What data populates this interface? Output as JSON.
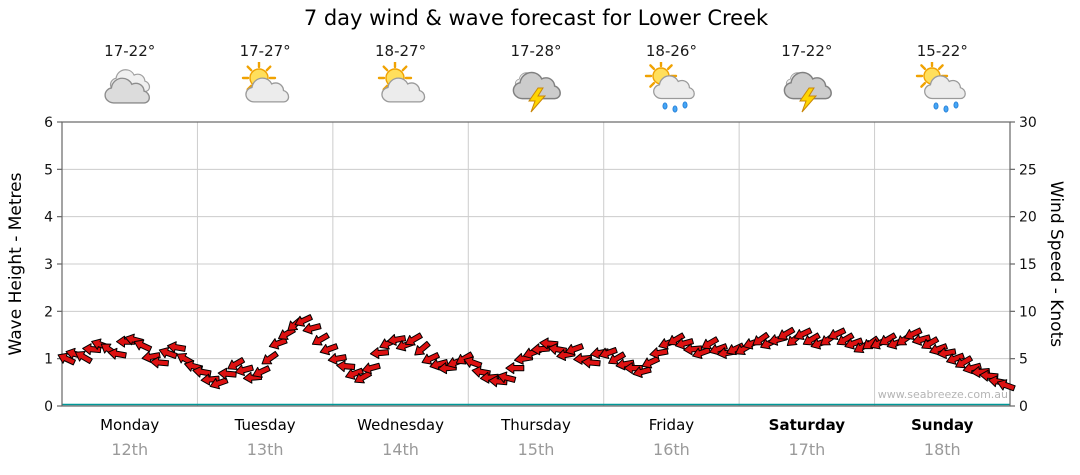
{
  "title": "7 day wind & wave forecast for Lower Creek",
  "watermark": "www.seabreeze.com.au",
  "axes": {
    "left_label": "Wave Height - Metres",
    "right_label": "Wind Speed - Knots",
    "left_ticks": [
      0,
      1,
      2,
      3,
      4,
      5,
      6
    ],
    "right_ticks": [
      0,
      5,
      10,
      15,
      20,
      25,
      30
    ]
  },
  "days": [
    {
      "name": "Monday",
      "date": "12th",
      "temp": "17-22°",
      "icon": "cloudy",
      "bold": false
    },
    {
      "name": "Tuesday",
      "date": "13th",
      "temp": "17-27°",
      "icon": "partly-cloudy",
      "bold": false
    },
    {
      "name": "Wednesday",
      "date": "14th",
      "temp": "18-27°",
      "icon": "partly-cloudy",
      "bold": false
    },
    {
      "name": "Thursday",
      "date": "15th",
      "temp": "17-28°",
      "icon": "storm",
      "bold": false
    },
    {
      "name": "Friday",
      "date": "16th",
      "temp": "18-26°",
      "icon": "sun-showers",
      "bold": false
    },
    {
      "name": "Saturday",
      "date": "17th",
      "temp": "17-22°",
      "icon": "storm",
      "bold": true
    },
    {
      "name": "Sunday",
      "date": "18th",
      "temp": "15-22°",
      "icon": "sun-showers",
      "bold": true
    }
  ],
  "chart_data": {
    "type": "scatter",
    "subtype": "wind-direction-arrows",
    "title": "7 day wind & wave forecast for Lower Creek",
    "ylabel_left": "Wave Height - Metres",
    "ylim_left": [
      0,
      6
    ],
    "ylabel_right": "Wind Speed - Knots",
    "ylim_right": [
      0,
      30
    ],
    "grid": true,
    "categories": [
      "Monday 12th",
      "Tuesday 13th",
      "Wednesday 14th",
      "Thursday 15th",
      "Friday 16th",
      "Saturday 17th",
      "Sunday 18th"
    ],
    "series": [
      {
        "day": "Monday",
        "knots": [
          5,
          5.5,
          5.2,
          6,
          6.5,
          6,
          5.5,
          6.8,
          7,
          6.4,
          5.2,
          4.6,
          5.6,
          6.2,
          5,
          4.2
        ],
        "dirs": [
          205,
          195,
          210,
          185,
          200,
          215,
          190,
          180,
          195,
          205,
          170,
          185,
          200,
          190,
          210,
          195
        ]
      },
      {
        "day": "Tuesday",
        "knots": [
          3.6,
          2.8,
          2.4,
          3.4,
          4.4,
          3.8,
          3,
          3.6,
          5,
          6.6,
          7.6,
          8.6,
          9,
          8.2,
          7,
          6
        ],
        "dirs": [
          190,
          175,
          160,
          185,
          150,
          165,
          175,
          155,
          145,
          160,
          150,
          140,
          155,
          165,
          150,
          160
        ]
      },
      {
        "day": "Wednesday",
        "knots": [
          5,
          4.2,
          3.4,
          3,
          4,
          5.6,
          6.6,
          7,
          6.4,
          7,
          6,
          5,
          4.4,
          4,
          4.6,
          5
        ],
        "dirs": [
          170,
          185,
          160,
          150,
          165,
          175,
          155,
          170,
          160,
          150,
          140,
          155,
          165,
          175,
          160,
          150
        ]
      },
      {
        "day": "Thursday",
        "knots": [
          4.6,
          3.6,
          3,
          2.6,
          3,
          4,
          5,
          5.6,
          6,
          6.6,
          6,
          5.4,
          6,
          5,
          4.6,
          5.6
        ],
        "dirs": [
          200,
          190,
          175,
          185,
          195,
          180,
          170,
          160,
          175,
          185,
          190,
          170,
          160,
          175,
          185,
          170
        ]
      },
      {
        "day": "Friday",
        "knots": [
          5.6,
          5,
          4.4,
          4,
          3.6,
          4.6,
          5.6,
          6.6,
          7,
          6.6,
          6,
          5.6,
          6.6,
          6,
          5.6,
          6
        ],
        "dirs": [
          160,
          150,
          170,
          180,
          165,
          155,
          170,
          160,
          150,
          165,
          175,
          160,
          150,
          160,
          170,
          155
        ]
      },
      {
        "day": "Saturday",
        "knots": [
          6,
          6.6,
          7,
          6.6,
          7,
          7.6,
          7,
          7.6,
          7,
          6.6,
          7,
          7.6,
          7,
          6.6,
          6.2,
          6.6
        ],
        "dirs": [
          150,
          160,
          145,
          155,
          165,
          150,
          140,
          155,
          150,
          160,
          145,
          155,
          150,
          160,
          150,
          145
        ]
      },
      {
        "day": "Sunday",
        "knots": [
          6.6,
          7,
          6.6,
          7,
          7.6,
          7,
          6.6,
          6,
          5.6,
          5,
          4.6,
          4,
          3.6,
          3.2,
          2.6,
          2.2
        ],
        "dirs": [
          155,
          150,
          160,
          145,
          155,
          165,
          150,
          160,
          170,
          160,
          150,
          165,
          175,
          185,
          190,
          200
        ]
      }
    ]
  },
  "colors": {
    "arrow": "#dd1111",
    "arrow_outline": "#000000",
    "grid": "#cccccc",
    "axis": "#666666",
    "baseline": "#009898",
    "date_text": "#9a9a9a"
  }
}
